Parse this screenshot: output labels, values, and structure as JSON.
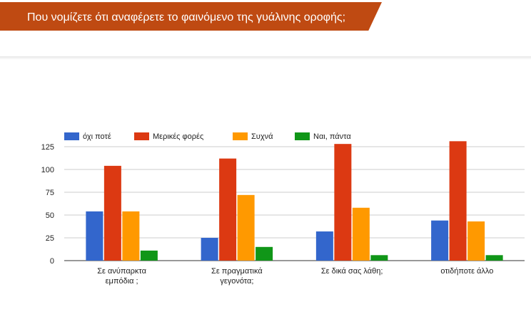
{
  "header": {
    "title": "Που νομίζετε ότι αναφέρετε το φαινόμενο της γυάλινης οροφής;"
  },
  "chart_data": {
    "type": "bar",
    "title": "",
    "xlabel": "",
    "ylabel": "",
    "categories": [
      [
        "Σε ανύπαρκτα",
        "εμπόδια ;"
      ],
      [
        "Σε πραγματικά",
        "γεγονότα;"
      ],
      [
        "Σε δικά σας λάθη;"
      ],
      [
        "οτιδήποτε άλλο"
      ]
    ],
    "series": [
      {
        "name": "όχι ποτέ",
        "color": "#3366cc",
        "values": [
          54,
          25,
          32,
          44
        ]
      },
      {
        "name": "Μερικές φορές",
        "color": "#dc3912",
        "values": [
          104,
          112,
          128,
          131
        ]
      },
      {
        "name": "Συχνά",
        "color": "#ff9900",
        "values": [
          54,
          72,
          58,
          43
        ]
      },
      {
        "name": "Ναι, πάντα",
        "color": "#109618",
        "values": [
          11,
          15,
          6,
          6
        ]
      }
    ],
    "yticks": [
      "0",
      "25",
      "50",
      "75",
      "100",
      "125"
    ],
    "ylim": [
      0,
      125
    ],
    "grid": true,
    "legend": "top-left"
  }
}
